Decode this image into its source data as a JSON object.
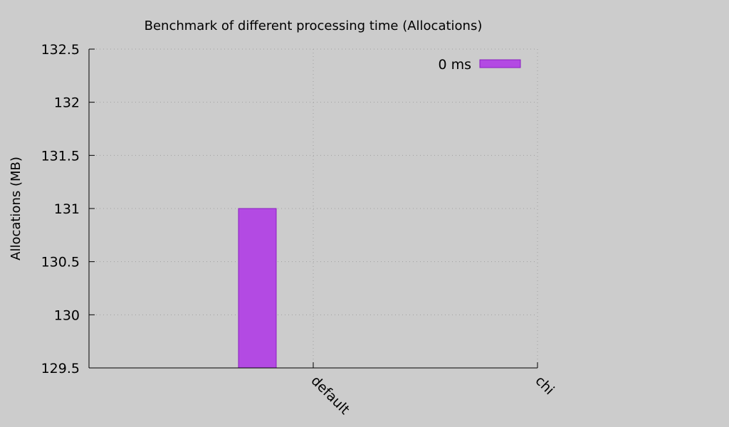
{
  "chart_data": {
    "type": "bar",
    "title": "Benchmark of different processing time (Allocations)",
    "xlabel": "",
    "ylabel": "Allocations (MB)",
    "categories": [
      "default",
      "chi"
    ],
    "ylim": [
      129.5,
      132.5
    ],
    "yticks": [
      "129.5",
      "130",
      "130.5",
      "131",
      "131.5",
      "132",
      "132.5"
    ],
    "series": [
      {
        "name": "0 ms",
        "color": "#b34ae3",
        "values": [
          131,
          null
        ]
      }
    ],
    "grid": true,
    "legend_position": "top-right",
    "background": "#cccccc"
  }
}
